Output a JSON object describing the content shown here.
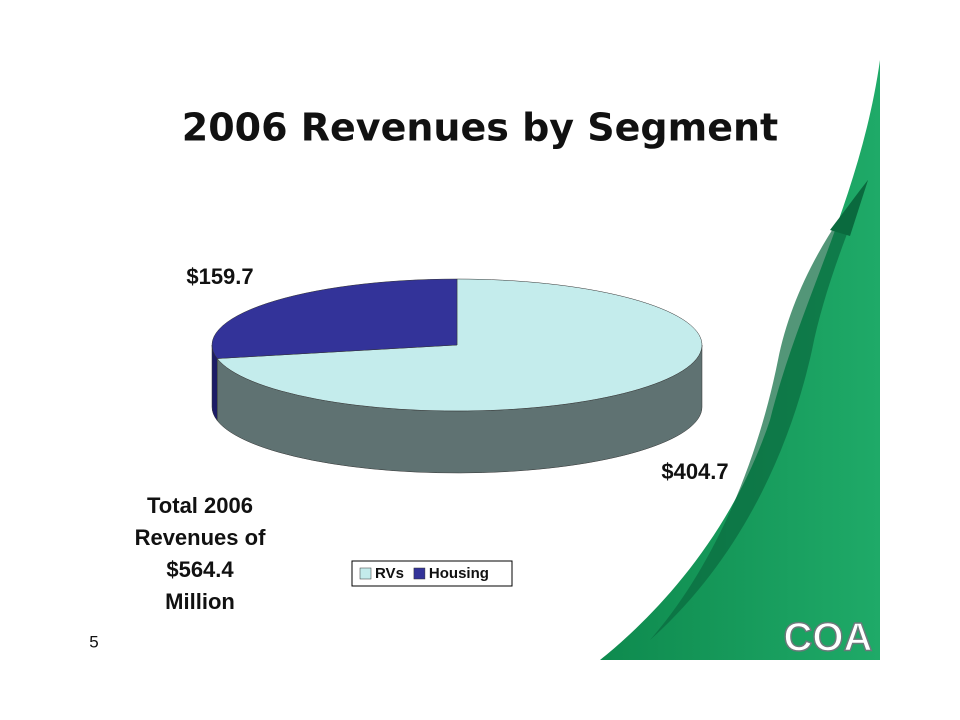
{
  "chart_data": {
    "type": "pie",
    "title": "2006 Revenues by Segment",
    "categories": [
      "RVs",
      "Housing"
    ],
    "values": [
      404.7,
      159.7
    ],
    "value_labels": [
      "$404.7",
      "$159.7"
    ],
    "colors": [
      "#c4ecec",
      "#333399"
    ],
    "side_colors": [
      "#5f7272",
      "#1c1c66"
    ],
    "annotation": [
      "Total 2006",
      "Revenues of",
      "$564.4",
      "Million"
    ]
  },
  "page_number": "5",
  "logo": "COA"
}
